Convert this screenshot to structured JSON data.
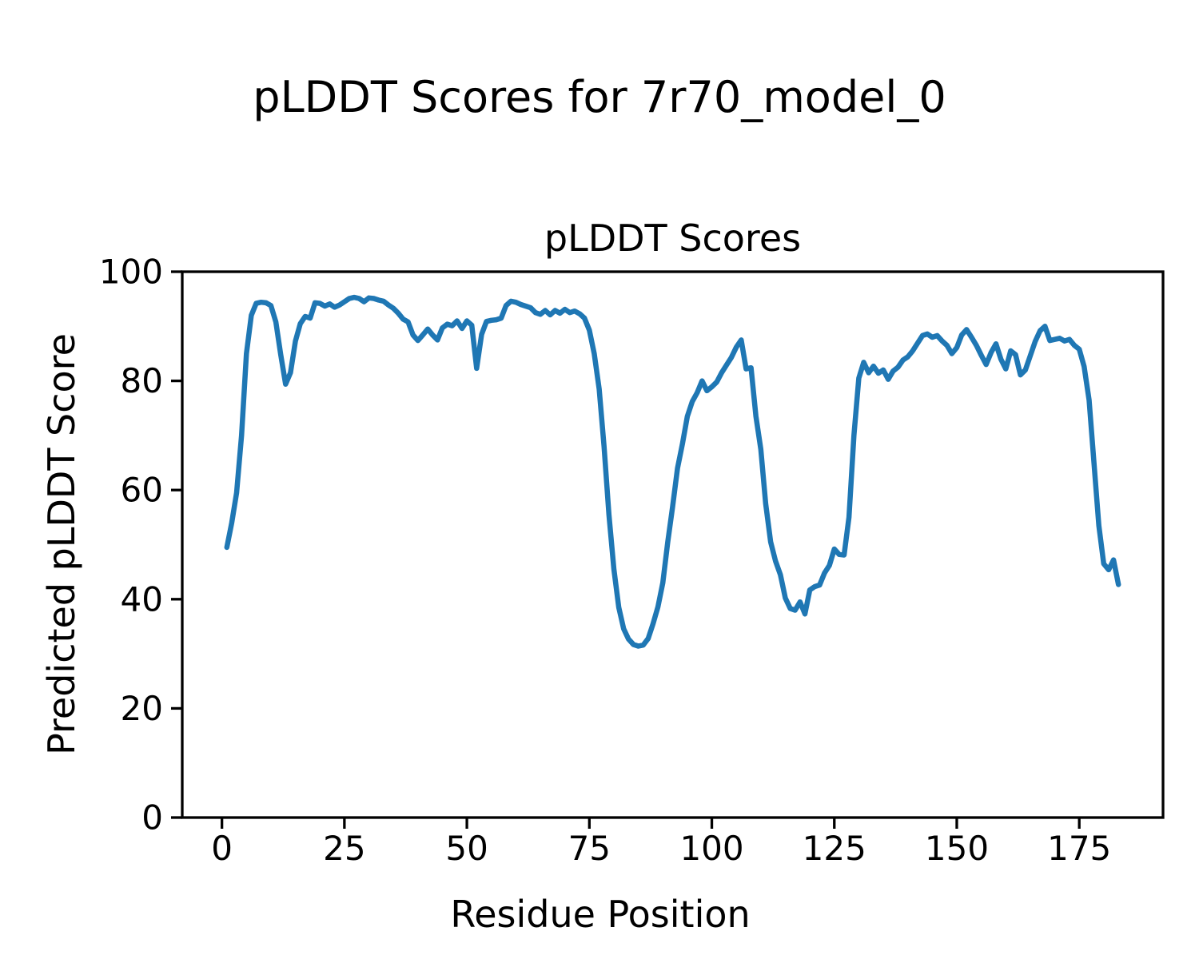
{
  "figure": {
    "suptitle": "pLDDT Scores for 7r70_model_0",
    "axes_title": "pLDDT Scores",
    "xlabel": "Residue Position",
    "ylabel": "Predicted pLDDT Score"
  },
  "colors": {
    "line": "#1f77b4",
    "axes": "#000000",
    "background": "#ffffff"
  },
  "chart_data": {
    "type": "line",
    "title": "pLDDT Scores",
    "xlabel": "Residue Position",
    "ylabel": "Predicted pLDDT Score",
    "xlim": [
      -8.1,
      192.1
    ],
    "ylim": [
      0,
      100
    ],
    "xticks": [
      0,
      25,
      50,
      75,
      100,
      125,
      150,
      175
    ],
    "yticks": [
      0,
      20,
      40,
      60,
      80,
      100
    ],
    "grid": false,
    "legend": null,
    "series": [
      {
        "name": "pLDDT",
        "x": [
          1,
          2,
          3,
          4,
          5,
          6,
          7,
          8,
          9,
          10,
          11,
          12,
          13,
          14,
          15,
          16,
          17,
          18,
          19,
          20,
          21,
          22,
          23,
          24,
          25,
          26,
          27,
          28,
          29,
          30,
          31,
          32,
          33,
          34,
          35,
          36,
          37,
          38,
          39,
          40,
          41,
          42,
          43,
          44,
          45,
          46,
          47,
          48,
          49,
          50,
          51,
          52,
          53,
          54,
          55,
          56,
          57,
          58,
          59,
          60,
          61,
          62,
          63,
          64,
          65,
          66,
          67,
          68,
          69,
          70,
          71,
          72,
          73,
          74,
          75,
          76,
          77,
          78,
          79,
          80,
          81,
          82,
          83,
          84,
          85,
          86,
          87,
          88,
          89,
          90,
          91,
          92,
          93,
          94,
          95,
          96,
          97,
          98,
          99,
          100,
          101,
          102,
          103,
          104,
          105,
          106,
          107,
          108,
          109,
          110,
          111,
          112,
          113,
          114,
          115,
          116,
          117,
          118,
          119,
          120,
          121,
          122,
          123,
          124,
          125,
          126,
          127,
          128,
          129,
          130,
          131,
          132,
          133,
          134,
          135,
          136,
          137,
          138,
          139,
          140,
          141,
          142,
          143,
          144,
          145,
          146,
          147,
          148,
          149,
          150,
          151,
          152,
          153,
          154,
          155,
          156,
          157,
          158,
          159,
          160,
          161,
          162,
          163,
          164,
          165,
          166,
          167,
          168,
          169,
          170,
          171,
          172,
          173,
          174,
          175,
          176,
          177,
          178,
          179,
          180,
          181,
          182,
          183
        ],
        "y": [
          49.5,
          54.0,
          59.5,
          70.0,
          85.0,
          92.0,
          94.2,
          94.4,
          94.3,
          93.8,
          90.8,
          84.8,
          79.4,
          81.5,
          87.3,
          90.5,
          91.8,
          91.5,
          94.3,
          94.2,
          93.7,
          94.1,
          93.5,
          93.9,
          94.5,
          95.1,
          95.3,
          95.1,
          94.5,
          95.2,
          95.1,
          94.8,
          94.6,
          93.9,
          93.3,
          92.4,
          91.3,
          90.8,
          88.4,
          87.4,
          88.4,
          89.5,
          88.4,
          87.5,
          89.7,
          90.4,
          90.1,
          91.0,
          89.6,
          91.0,
          90.2,
          82.3,
          88.5,
          90.9,
          91.1,
          91.2,
          91.5,
          93.8,
          94.6,
          94.4,
          94.0,
          93.7,
          93.4,
          92.5,
          92.2,
          92.9,
          92.1,
          92.9,
          92.4,
          93.1,
          92.5,
          92.8,
          92.3,
          91.5,
          89.3,
          85.0,
          78.5,
          68.0,
          55.5,
          45.5,
          38.5,
          34.6,
          32.7,
          31.7,
          31.4,
          31.6,
          32.8,
          35.5,
          38.6,
          43.0,
          50.5,
          57.0,
          64.0,
          68.5,
          73.5,
          76.2,
          77.8,
          80.0,
          78.2,
          78.9,
          79.8,
          81.5,
          82.9,
          84.3,
          86.2,
          87.5,
          82.2,
          82.4,
          73.5,
          67.5,
          57.5,
          50.5,
          47.0,
          44.5,
          40.2,
          38.3,
          38.0,
          39.5,
          37.3,
          41.7,
          42.3,
          42.6,
          44.8,
          46.2,
          49.2,
          48.2,
          48.1,
          55.0,
          70.0,
          80.5,
          83.4,
          81.5,
          82.7,
          81.4,
          82.0,
          80.3,
          81.8,
          82.5,
          83.8,
          84.4,
          85.5,
          86.9,
          88.3,
          88.6,
          88.0,
          88.3,
          87.3,
          86.5,
          85.0,
          86.1,
          88.4,
          89.4,
          88.0,
          86.5,
          84.7,
          83.0,
          85.2,
          86.8,
          84.0,
          82.2,
          85.5,
          84.8,
          81.1,
          82.0,
          84.6,
          87.2,
          89.2,
          90.0,
          87.4,
          87.6,
          87.8,
          87.3,
          87.6,
          86.5,
          85.8,
          82.6,
          76.5,
          65.0,
          53.5,
          46.5,
          45.4,
          47.2,
          42.7
        ]
      }
    ]
  }
}
